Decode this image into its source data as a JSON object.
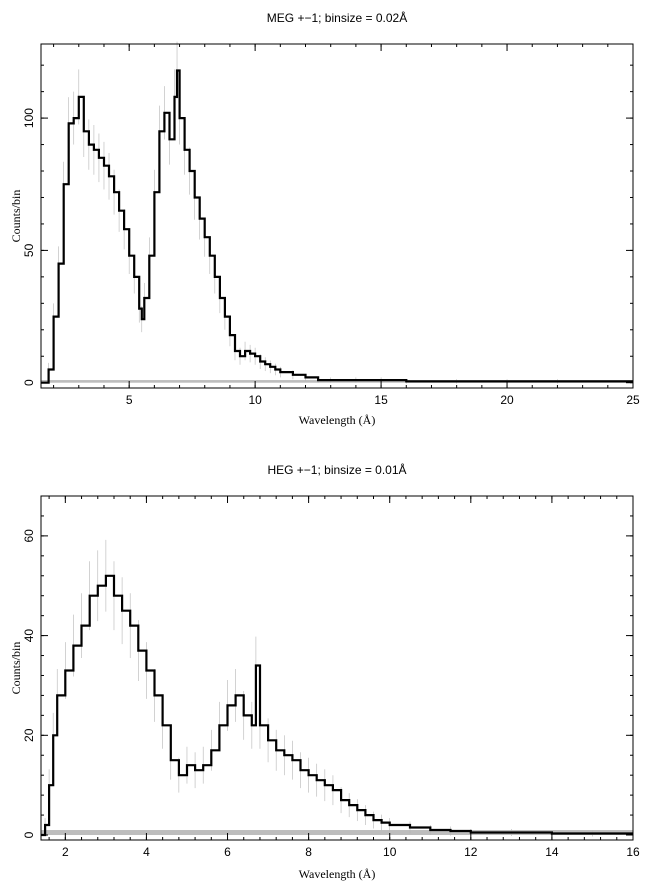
{
  "chart_data": [
    {
      "type": "line",
      "title": "MEG +−1; binsize = 0.02Å",
      "xlabel": "Wavelength (Å)",
      "ylabel": "Counts/bin",
      "xlim": [
        1.5,
        25
      ],
      "ylim": [
        -2,
        128
      ],
      "xticks": [
        5,
        10,
        15,
        20,
        25
      ],
      "yticks": [
        0,
        50,
        100
      ],
      "grid": false,
      "x": [
        1.5,
        1.8,
        2.0,
        2.2,
        2.4,
        2.6,
        2.8,
        3.0,
        3.2,
        3.4,
        3.6,
        3.8,
        4.0,
        4.2,
        4.4,
        4.6,
        4.8,
        5.0,
        5.2,
        5.4,
        5.5,
        5.6,
        5.8,
        6.0,
        6.2,
        6.4,
        6.6,
        6.8,
        6.9,
        7.0,
        7.2,
        7.4,
        7.6,
        7.8,
        8.0,
        8.2,
        8.4,
        8.6,
        8.8,
        9.0,
        9.2,
        9.4,
        9.6,
        9.8,
        10.0,
        10.2,
        10.4,
        10.6,
        10.8,
        11.0,
        11.5,
        12.0,
        12.5,
        13.0,
        14.0,
        15.0,
        16.0,
        18.0,
        20.0,
        22.0,
        25.0
      ],
      "values": [
        0,
        5,
        25,
        45,
        75,
        98,
        100,
        108,
        95,
        90,
        88,
        85,
        82,
        78,
        72,
        65,
        58,
        48,
        40,
        28,
        24,
        32,
        48,
        72,
        95,
        102,
        92,
        108,
        118,
        100,
        88,
        80,
        70,
        62,
        55,
        48,
        40,
        32,
        25,
        18,
        12,
        10,
        12,
        11,
        10,
        8,
        7,
        6,
        5,
        4,
        3,
        2,
        1,
        1,
        1,
        1,
        0.5,
        0.5,
        0.5,
        0.5,
        0.5
      ],
      "errors": [
        1,
        2.5,
        5,
        6.5,
        8.5,
        9.9,
        10,
        10.4,
        9.7,
        9.5,
        9.4,
        9.2,
        9,
        8.8,
        8.5,
        8,
        7.6,
        6.9,
        6.3,
        5.3,
        4.9,
        5.7,
        6.9,
        8.5,
        9.7,
        10.1,
        9.6,
        10.4,
        10.9,
        10,
        9.4,
        8.9,
        8.4,
        7.9,
        7.4,
        6.9,
        6.3,
        5.7,
        5,
        4.2,
        3.5,
        3.2,
        3.5,
        3.3,
        3.2,
        2.8,
        2.6,
        2.4,
        2.2,
        2,
        1.7,
        1.4,
        1,
        1,
        1,
        1,
        0.8,
        0.8,
        0.8,
        0.8,
        0.8
      ]
    },
    {
      "type": "line",
      "title": "HEG +−1; binsize = 0.01Å",
      "xlabel": "Wavelength (Å)",
      "ylabel": "Counts/bin",
      "xlim": [
        1.4,
        16
      ],
      "ylim": [
        -1,
        68
      ],
      "xticks": [
        2,
        4,
        6,
        8,
        10,
        12,
        14,
        16
      ],
      "yticks": [
        0,
        20,
        40,
        60
      ],
      "grid": false,
      "x": [
        1.4,
        1.5,
        1.6,
        1.7,
        1.8,
        2.0,
        2.2,
        2.4,
        2.6,
        2.8,
        3.0,
        3.2,
        3.4,
        3.6,
        3.8,
        4.0,
        4.2,
        4.4,
        4.6,
        4.8,
        5.0,
        5.2,
        5.4,
        5.6,
        5.8,
        6.0,
        6.2,
        6.4,
        6.6,
        6.7,
        6.8,
        7.0,
        7.2,
        7.4,
        7.6,
        7.8,
        8.0,
        8.2,
        8.4,
        8.6,
        8.8,
        9.0,
        9.2,
        9.4,
        9.6,
        9.8,
        10.0,
        10.5,
        11.0,
        11.5,
        12.0,
        13.0,
        14.0,
        15.0,
        16.0
      ],
      "values": [
        0,
        2,
        10,
        20,
        28,
        33,
        38,
        42,
        48,
        50,
        52,
        48,
        45,
        42,
        37,
        33,
        28,
        22,
        15,
        12,
        14,
        13,
        14,
        17,
        22,
        26,
        28,
        24,
        22,
        34,
        22,
        19,
        17,
        16,
        15,
        13,
        12,
        11,
        10,
        9,
        7,
        6,
        5,
        4,
        3,
        2.5,
        2,
        1.5,
        1,
        0.8,
        0.5,
        0.5,
        0.3,
        0.3,
        0.3
      ],
      "errors": [
        1,
        1.4,
        3.2,
        4.5,
        5.3,
        5.7,
        6.2,
        6.5,
        6.9,
        7.1,
        7.2,
        6.9,
        6.7,
        6.5,
        6.1,
        5.7,
        5.3,
        4.7,
        3.9,
        3.5,
        3.7,
        3.6,
        3.7,
        4.1,
        4.7,
        5.1,
        5.3,
        4.9,
        4.7,
        5.8,
        4.7,
        4.4,
        4.1,
        4,
        3.9,
        3.6,
        3.5,
        3.3,
        3.2,
        3,
        2.6,
        2.4,
        2.2,
        2,
        1.7,
        1.6,
        1.4,
        1.2,
        1,
        0.9,
        0.7,
        0.7,
        0.6,
        0.6,
        0.6
      ]
    }
  ]
}
